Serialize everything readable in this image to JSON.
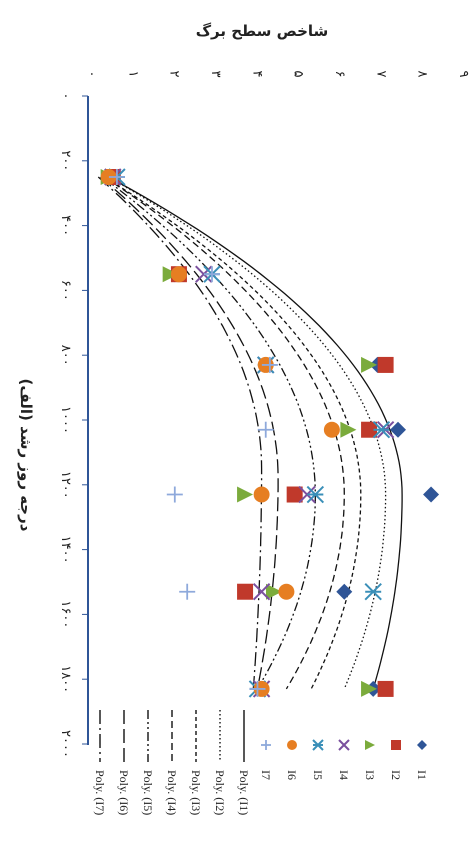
{
  "chart_data": {
    "type": "scatter",
    "title": "",
    "ylabel": "شاخص سطح برگ",
    "xlabel": "درجه روز رشد (الف)",
    "xlim": [
      0,
      2000
    ],
    "ylim": [
      0,
      9
    ],
    "x_ticks": [
      "۰",
      "۲۰۰",
      "۴۰۰",
      "۶۰۰",
      "۸۰۰",
      "۱۰۰۰",
      "۱۲۰۰",
      "۱۴۰۰",
      "۱۶۰۰",
      "۱۸۰۰",
      "۲۰۰۰"
    ],
    "y_ticks": [
      "۰",
      "۱",
      "۲",
      "۳",
      "۴",
      "۵",
      "۶",
      "۷",
      "۸",
      "۹"
    ],
    "grid": false,
    "legend_position": "bottom",
    "x": [
      250,
      550,
      830,
      1030,
      1230,
      1530,
      1830
    ],
    "series": [
      {
        "name": "I1",
        "marker": "diamond",
        "color": "#2f5597",
        "values": [
          0.6,
          2.1,
          7.0,
          7.5,
          8.3,
          6.2,
          6.9
        ]
      },
      {
        "name": "I2",
        "marker": "square",
        "color": "#c0392b",
        "values": [
          0.6,
          2.2,
          7.2,
          6.8,
          5.0,
          3.8,
          7.2
        ]
      },
      {
        "name": "I3",
        "marker": "triangle",
        "color": "#7bab3c",
        "values": [
          0.5,
          2.0,
          6.8,
          6.3,
          3.8,
          4.5,
          6.8
        ]
      },
      {
        "name": "I4",
        "marker": "x",
        "color": "#7a4f9e",
        "values": [
          0.6,
          2.8,
          4.3,
          7.2,
          5.3,
          4.2,
          4.2
        ]
      },
      {
        "name": "I5",
        "marker": "star",
        "color": "#3a8fb8",
        "values": [
          0.7,
          3.0,
          4.3,
          7.1,
          5.5,
          6.9,
          4.1
        ]
      },
      {
        "name": "I6",
        "marker": "circle",
        "color": "#e67e22",
        "values": [
          0.5,
          2.2,
          4.3,
          5.9,
          4.2,
          4.8,
          4.2
        ]
      },
      {
        "name": "I7",
        "marker": "plus",
        "color": "#8ea9db",
        "values": [
          0.7,
          3.0,
          4.4,
          4.3,
          2.1,
          2.4,
          4.1
        ]
      }
    ],
    "trendlines": [
      {
        "name": "Poly. (I1)",
        "dash": "solid",
        "peak_x": 1230,
        "peak_y": 7.6,
        "start_x": 250,
        "start_y": 0.5,
        "end_x": 1830,
        "end_y": 6.9
      },
      {
        "name": "Poly. (I2)",
        "dash": "dotted",
        "peak_x": 1230,
        "peak_y": 7.2,
        "start_x": 250,
        "start_y": 0.5,
        "end_x": 1830,
        "end_y": 6.2
      },
      {
        "name": "Poly. (I3)",
        "dash": "short-dash",
        "peak_x": 1230,
        "peak_y": 6.6,
        "start_x": 250,
        "start_y": 0.4,
        "end_x": 1830,
        "end_y": 5.4
      },
      {
        "name": "Poly. (I4)",
        "dash": "dash",
        "peak_x": 1230,
        "peak_y": 6.2,
        "start_x": 250,
        "start_y": 0.4,
        "end_x": 1830,
        "end_y": 4.8
      },
      {
        "name": "Poly. (I5)",
        "dash": "dash-dot-dot",
        "peak_x": 1230,
        "peak_y": 5.5,
        "start_x": 250,
        "start_y": 0.35,
        "end_x": 1830,
        "end_y": 4.1
      },
      {
        "name": "Poly. (I6)",
        "dash": "long-dash",
        "peak_x": 1180,
        "peak_y": 4.6,
        "start_x": 250,
        "start_y": 0.3,
        "end_x": 1830,
        "end_y": 4.1
      },
      {
        "name": "Poly. (I7)",
        "dash": "long-dash-dot",
        "peak_x": 1150,
        "peak_y": 4.2,
        "start_x": 250,
        "start_y": 0.25,
        "end_x": 1830,
        "end_y": 4.0
      }
    ]
  }
}
